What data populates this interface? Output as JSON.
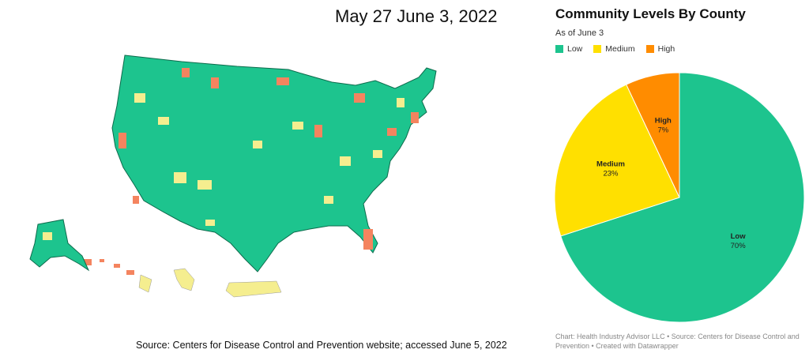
{
  "map": {
    "title": "May 27 June 3, 2022",
    "source": "Source: Centers for Disease Control and Prevention website;  accessed June 5, 2022"
  },
  "chart_data": {
    "type": "pie",
    "title": "Community Levels By County",
    "subtitle": "As of June 3",
    "legend_position": "top-left",
    "slices": [
      {
        "label": "Low",
        "value": 70,
        "display": "70%",
        "color": "#1DC48E"
      },
      {
        "label": "Medium",
        "value": 23,
        "display": "23%",
        "color": "#FFE000"
      },
      {
        "label": "High",
        "value": 7,
        "display": "7%",
        "color": "#FF8C00"
      }
    ],
    "credit": "Chart: Health Industry Advisor LLC • Source: Centers for Disease Control and Prevention • Created with Datawrapper"
  }
}
